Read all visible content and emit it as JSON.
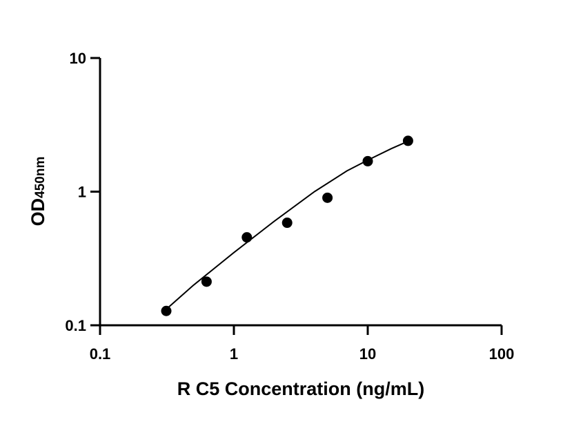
{
  "chart_data": {
    "type": "scatter",
    "x_scale": "log",
    "y_scale": "log",
    "xlim": [
      0.1,
      100
    ],
    "ylim": [
      0.1,
      10
    ],
    "x_ticks": [
      0.1,
      1,
      10,
      100
    ],
    "x_tick_labels": [
      "0.1",
      "1",
      "10",
      "100"
    ],
    "y_ticks": [
      0.1,
      1,
      10
    ],
    "y_tick_labels": [
      "0.1",
      "1",
      "10"
    ],
    "xlabel": "R C5 Concentration (ng/mL)",
    "ylabel_main": "OD",
    "ylabel_sub": "450nm",
    "grid": false,
    "legend": "none",
    "marker_color": "#000000",
    "line_color": "#000000",
    "series": [
      {
        "x": [
          0.3125,
          0.625,
          1.25,
          2.5,
          5,
          10,
          20
        ],
        "y": [
          0.128,
          0.212,
          0.455,
          0.585,
          0.9,
          1.69,
          2.4
        ]
      }
    ],
    "fit_curve": {
      "x": [
        0.3125,
        0.5,
        1,
        2,
        4,
        7,
        10,
        15,
        20
      ],
      "y": [
        0.132,
        0.2,
        0.35,
        0.6,
        1.0,
        1.43,
        1.72,
        2.1,
        2.38
      ]
    }
  }
}
